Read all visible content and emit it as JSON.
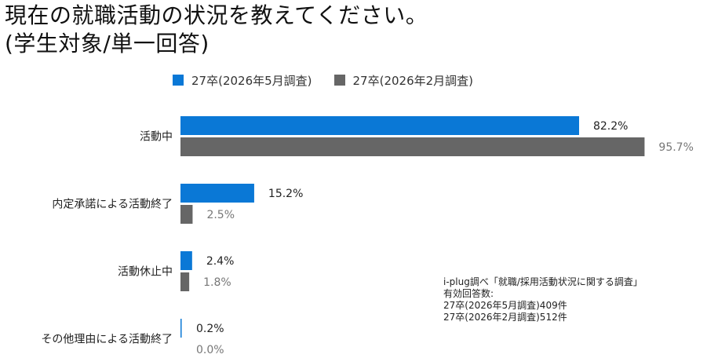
{
  "title_line1": "現在の就職活動の状況を教えてください。",
  "title_line2": "(学生対象/単一回答)",
  "chart_data": {
    "type": "bar",
    "orientation": "horizontal",
    "categories": [
      "活動中",
      "内定承諾による活動終了",
      "活動休止中",
      "その他理由による活動終了"
    ],
    "series": [
      {
        "name": "27卒(2026年5月調査)",
        "color": "#0a78d6",
        "values": [
          82.2,
          15.2,
          2.4,
          0.2
        ],
        "labels": [
          "82.2%",
          "15.2%",
          "2.4%",
          "0.2%"
        ]
      },
      {
        "name": "27卒(2026年2月調査)",
        "color": "#666666",
        "values": [
          95.7,
          2.5,
          1.8,
          0.0
        ],
        "labels": [
          "95.7%",
          "2.5%",
          "1.8%",
          "0.0%"
        ]
      }
    ],
    "xlim": [
      0,
      100
    ],
    "legend": "top",
    "grid": false
  },
  "note": {
    "lines": [
      "i-plug調べ「就職/採用活動状況に関する調査」",
      "有効回答数:",
      "27卒(2026年5月調査)409件",
      "27卒(2026年2月調査)512件"
    ]
  }
}
